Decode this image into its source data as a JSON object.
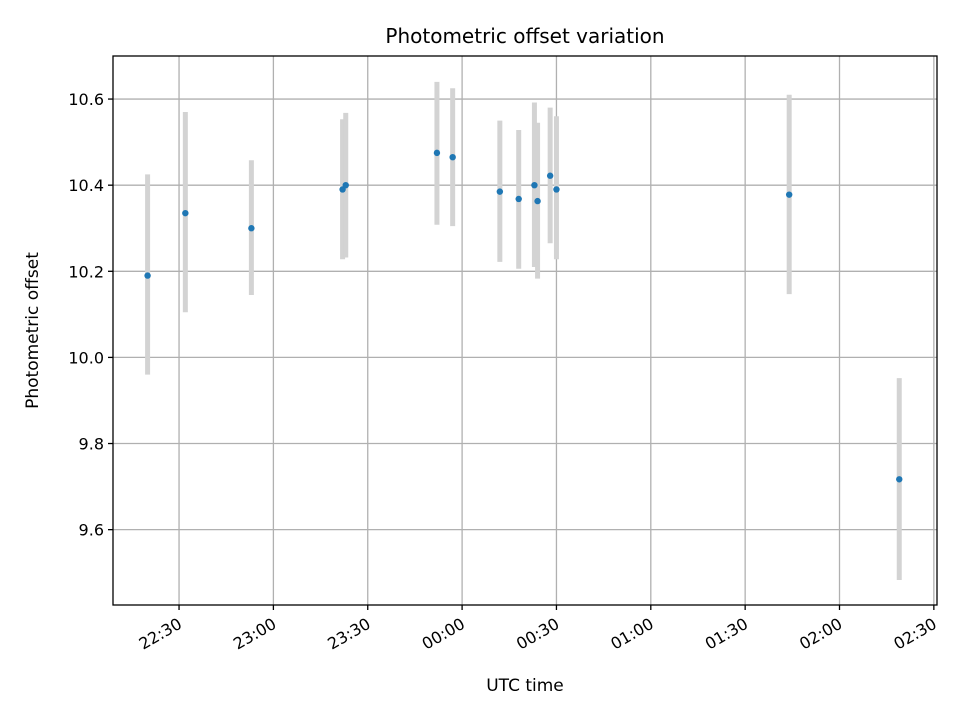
{
  "chart_data": {
    "type": "scatter",
    "title": "Photometric offset variation",
    "xlabel": "UTC time",
    "ylabel": "Photometric offset",
    "x_ticks": [
      "22:30",
      "23:00",
      "23:30",
      "00:00",
      "00:30",
      "01:00",
      "01:30",
      "02:00",
      "02:30"
    ],
    "y_ticks": [
      "9.6",
      "9.8",
      "10.0",
      "10.2",
      "10.4",
      "10.6"
    ],
    "xlim": [
      "22:09",
      "02:31"
    ],
    "ylim": [
      9.425,
      10.7
    ],
    "grid": true,
    "colors": {
      "point": "#1f77b4",
      "errorbar": "#d3d3d3",
      "grid": "#b0b0b0"
    },
    "points": [
      {
        "x": "22:20",
        "y": 10.19,
        "ylow": 9.96,
        "yhigh": 10.425
      },
      {
        "x": "22:32",
        "y": 10.335,
        "ylow": 10.105,
        "yhigh": 10.57
      },
      {
        "x": "22:53",
        "y": 10.3,
        "ylow": 10.145,
        "yhigh": 10.458
      },
      {
        "x": "23:22",
        "y": 10.39,
        "ylow": 10.228,
        "yhigh": 10.553
      },
      {
        "x": "23:23",
        "y": 10.4,
        "ylow": 10.232,
        "yhigh": 10.568
      },
      {
        "x": "23:52",
        "y": 10.475,
        "ylow": 10.308,
        "yhigh": 10.64
      },
      {
        "x": "23:57",
        "y": 10.465,
        "ylow": 10.305,
        "yhigh": 10.625
      },
      {
        "x": "00:12",
        "y": 10.385,
        "ylow": 10.222,
        "yhigh": 10.55
      },
      {
        "x": "00:18",
        "y": 10.368,
        "ylow": 10.206,
        "yhigh": 10.528
      },
      {
        "x": "00:23",
        "y": 10.4,
        "ylow": 10.21,
        "yhigh": 10.592
      },
      {
        "x": "00:24",
        "y": 10.363,
        "ylow": 10.183,
        "yhigh": 10.545
      },
      {
        "x": "00:28",
        "y": 10.422,
        "ylow": 10.265,
        "yhigh": 10.58
      },
      {
        "x": "00:30",
        "y": 10.39,
        "ylow": 10.228,
        "yhigh": 10.56
      },
      {
        "x": "01:44",
        "y": 10.378,
        "ylow": 10.147,
        "yhigh": 10.61
      },
      {
        "x": "02:19",
        "y": 9.717,
        "ylow": 9.483,
        "yhigh": 9.952
      }
    ]
  }
}
